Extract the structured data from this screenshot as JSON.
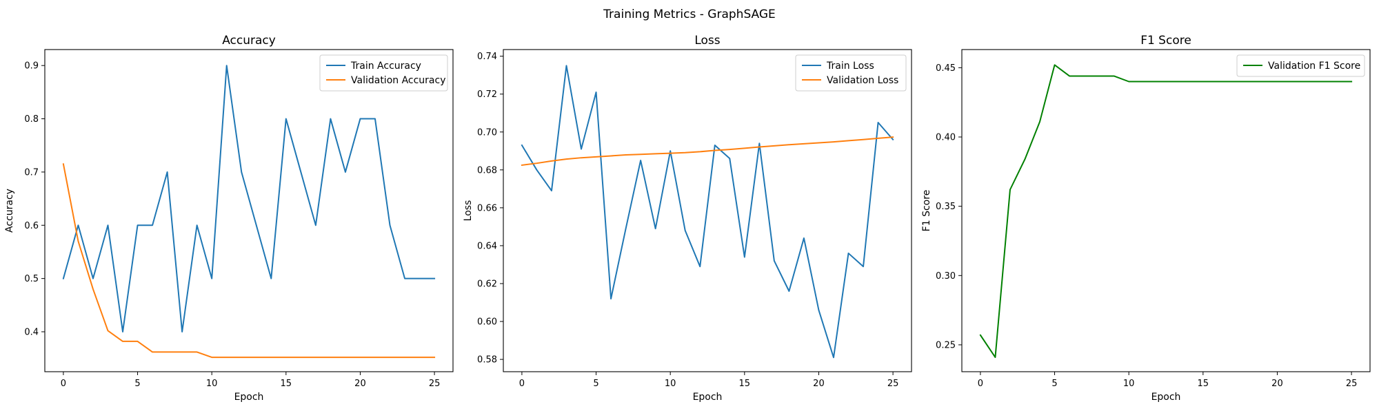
{
  "figure": {
    "suptitle": "Training Metrics - GraphSAGE"
  },
  "chart_data": [
    {
      "type": "line",
      "title": "Accuracy",
      "xlabel": "Epoch",
      "ylabel": "Accuracy",
      "xlim": [
        -1.25,
        26.25
      ],
      "ylim": [
        0.325,
        0.93
      ],
      "xticks": [
        0,
        5,
        10,
        15,
        20,
        25
      ],
      "yticks": [
        0.4,
        0.5,
        0.6,
        0.7,
        0.8,
        0.9
      ],
      "ytick_decimals": 1,
      "legend_position": "top-right",
      "grid": false,
      "series": [
        {
          "name": "Train Accuracy",
          "color": "#1f77b4",
          "x": [
            0,
            1,
            2,
            3,
            4,
            5,
            6,
            7,
            8,
            9,
            10,
            11,
            12,
            13,
            14,
            15,
            16,
            17,
            18,
            19,
            20,
            21,
            22,
            23,
            24,
            25
          ],
          "values": [
            0.5,
            0.6,
            0.5,
            0.6,
            0.4,
            0.6,
            0.6,
            0.7,
            0.4,
            0.6,
            0.5,
            0.9,
            0.7,
            0.6,
            0.5,
            0.8,
            0.7,
            0.6,
            0.8,
            0.7,
            0.8,
            0.8,
            0.6,
            0.5,
            0.5,
            0.5
          ]
        },
        {
          "name": "Validation Accuracy",
          "color": "#ff7f0e",
          "x": [
            0,
            1,
            2,
            3,
            4,
            5,
            6,
            7,
            8,
            9,
            10,
            11,
            12,
            13,
            14,
            15,
            16,
            17,
            18,
            19,
            20,
            21,
            22,
            23,
            24,
            25
          ],
          "values": [
            0.715,
            0.57,
            0.48,
            0.402,
            0.382,
            0.382,
            0.362,
            0.362,
            0.362,
            0.362,
            0.352,
            0.352,
            0.352,
            0.352,
            0.352,
            0.352,
            0.352,
            0.352,
            0.352,
            0.352,
            0.352,
            0.352,
            0.352,
            0.352,
            0.352,
            0.352
          ]
        }
      ]
    },
    {
      "type": "line",
      "title": "Loss",
      "xlabel": "Epoch",
      "ylabel": "Loss",
      "xlim": [
        -1.25,
        26.25
      ],
      "ylim": [
        0.5735,
        0.7435
      ],
      "xticks": [
        0,
        5,
        10,
        15,
        20,
        25
      ],
      "yticks": [
        0.58,
        0.6,
        0.62,
        0.64,
        0.66,
        0.68,
        0.7,
        0.72,
        0.74
      ],
      "ytick_decimals": 2,
      "legend_position": "top-right",
      "grid": false,
      "series": [
        {
          "name": "Train Loss",
          "color": "#1f77b4",
          "x": [
            0,
            1,
            2,
            3,
            4,
            5,
            6,
            7,
            8,
            9,
            10,
            11,
            12,
            13,
            14,
            15,
            16,
            17,
            18,
            19,
            20,
            21,
            22,
            23,
            24,
            25
          ],
          "values": [
            0.693,
            0.68,
            0.669,
            0.735,
            0.691,
            0.721,
            0.612,
            0.649,
            0.685,
            0.649,
            0.69,
            0.648,
            0.629,
            0.693,
            0.686,
            0.634,
            0.694,
            0.632,
            0.616,
            0.644,
            0.606,
            0.581,
            0.636,
            0.629,
            0.705,
            0.696
          ]
        },
        {
          "name": "Validation Loss",
          "color": "#ff7f0e",
          "x": [
            0,
            1,
            2,
            3,
            4,
            5,
            6,
            7,
            8,
            9,
            10,
            11,
            12,
            13,
            14,
            15,
            16,
            17,
            18,
            19,
            20,
            21,
            22,
            23,
            24,
            25
          ],
          "values": [
            0.6825,
            0.6835,
            0.6847,
            0.6857,
            0.6864,
            0.6869,
            0.6874,
            0.6879,
            0.6882,
            0.6885,
            0.6888,
            0.6891,
            0.6896,
            0.6903,
            0.6908,
            0.6914,
            0.6921,
            0.6927,
            0.6933,
            0.6938,
            0.6943,
            0.6948,
            0.6954,
            0.696,
            0.6967,
            0.6973
          ]
        }
      ]
    },
    {
      "type": "line",
      "title": "F1 Score",
      "xlabel": "Epoch",
      "ylabel": "F1 Score",
      "xlim": [
        -1.25,
        26.25
      ],
      "ylim": [
        0.2306,
        0.4631
      ],
      "xticks": [
        0,
        5,
        10,
        15,
        20,
        25
      ],
      "yticks": [
        0.25,
        0.3,
        0.35,
        0.4,
        0.45
      ],
      "ytick_decimals": 2,
      "legend_position": "top-right",
      "grid": false,
      "series": [
        {
          "name": "Validation F1 Score",
          "color": "#008000",
          "x": [
            0,
            1,
            2,
            3,
            4,
            5,
            6,
            7,
            8,
            9,
            10,
            11,
            12,
            13,
            14,
            15,
            16,
            17,
            18,
            19,
            20,
            21,
            22,
            23,
            24,
            25
          ],
          "values": [
            0.257,
            0.241,
            0.362,
            0.384,
            0.411,
            0.452,
            0.444,
            0.444,
            0.444,
            0.444,
            0.44,
            0.44,
            0.44,
            0.44,
            0.44,
            0.44,
            0.44,
            0.44,
            0.44,
            0.44,
            0.44,
            0.44,
            0.44,
            0.44,
            0.44,
            0.44
          ]
        }
      ]
    }
  ]
}
